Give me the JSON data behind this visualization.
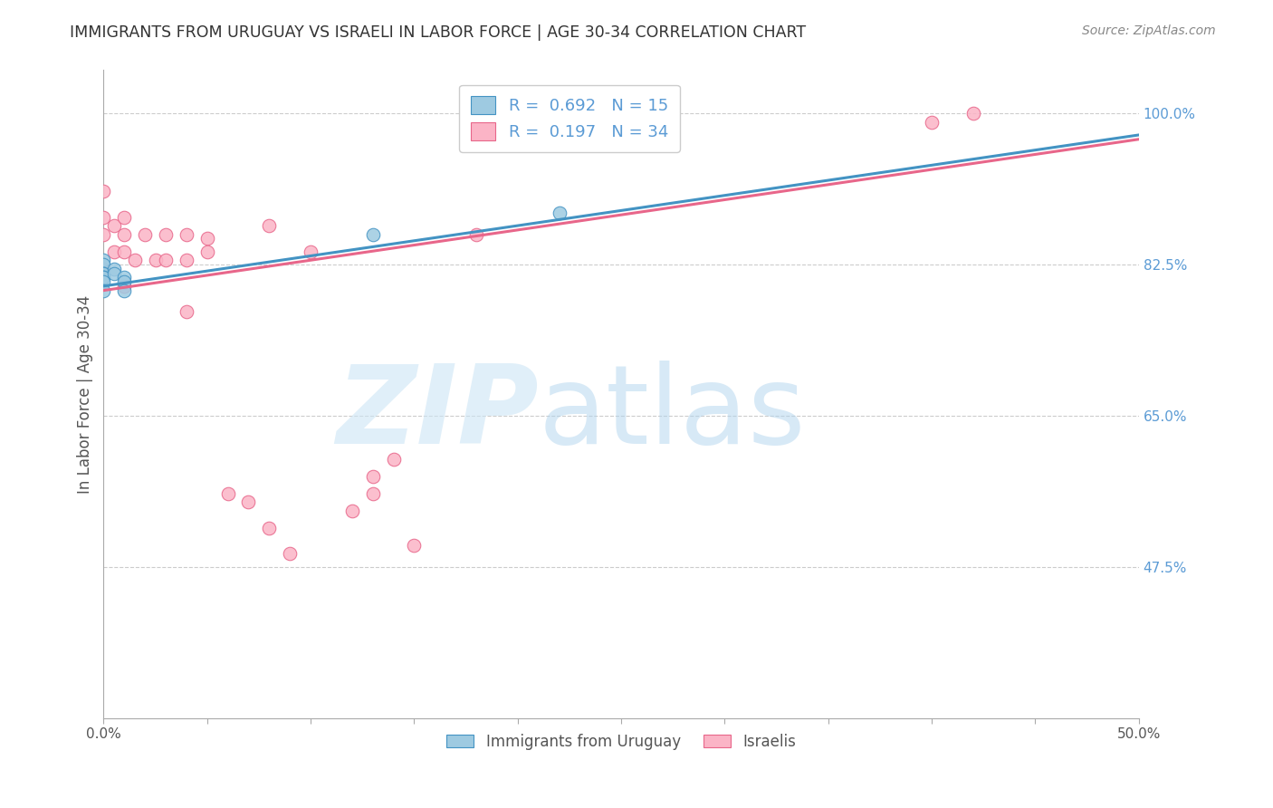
{
  "title": "IMMIGRANTS FROM URUGUAY VS ISRAELI IN LABOR FORCE | AGE 30-34 CORRELATION CHART",
  "source": "Source: ZipAtlas.com",
  "ylabel": "In Labor Force | Age 30-34",
  "xlim": [
    0.0,
    0.5
  ],
  "ylim": [
    0.3,
    1.05
  ],
  "right_ytick_labels": [
    "100.0%",
    "82.5%",
    "65.0%",
    "47.5%"
  ],
  "right_ytick_values": [
    1.0,
    0.825,
    0.65,
    0.475
  ],
  "xtick_labels": [
    "0.0%",
    "",
    "",
    "",
    "",
    "",
    "",
    "",
    "",
    "",
    "50.0%"
  ],
  "xtick_values": [
    0.0,
    0.05,
    0.1,
    0.15,
    0.2,
    0.25,
    0.3,
    0.35,
    0.4,
    0.45,
    0.5
  ],
  "blue_legend_R": "0.692",
  "blue_legend_N": "15",
  "pink_legend_R": "0.197",
  "pink_legend_N": "34",
  "blue_color": "#9ecae1",
  "pink_color": "#fbb4c6",
  "blue_line_color": "#4393c3",
  "pink_line_color": "#e8668a",
  "blue_scatter_x": [
    0.0,
    0.0,
    0.0,
    0.0,
    0.0,
    0.0,
    0.0,
    0.0,
    0.005,
    0.005,
    0.01,
    0.01,
    0.01,
    0.13,
    0.22
  ],
  "blue_scatter_y": [
    0.83,
    0.825,
    0.815,
    0.815,
    0.81,
    0.81,
    0.805,
    0.795,
    0.82,
    0.815,
    0.81,
    0.805,
    0.795,
    0.86,
    0.885
  ],
  "pink_scatter_x": [
    0.0,
    0.0,
    0.0,
    0.0,
    0.005,
    0.005,
    0.01,
    0.01,
    0.01,
    0.01,
    0.015,
    0.02,
    0.025,
    0.03,
    0.03,
    0.04,
    0.04,
    0.04,
    0.05,
    0.05,
    0.08,
    0.1,
    0.12,
    0.13,
    0.13,
    0.14,
    0.15,
    0.18,
    0.4,
    0.42,
    0.06,
    0.07,
    0.08,
    0.09
  ],
  "pink_scatter_y": [
    0.91,
    0.88,
    0.86,
    0.82,
    0.87,
    0.84,
    0.88,
    0.86,
    0.84,
    0.8,
    0.83,
    0.86,
    0.83,
    0.86,
    0.83,
    0.86,
    0.83,
    0.77,
    0.855,
    0.84,
    0.87,
    0.84,
    0.54,
    0.56,
    0.58,
    0.6,
    0.5,
    0.86,
    0.99,
    1.0,
    0.56,
    0.55,
    0.52,
    0.49
  ],
  "blue_line_x0": 0.0,
  "blue_line_x1": 0.5,
  "blue_line_y0": 0.8,
  "blue_line_y1": 0.975,
  "pink_line_x0": 0.0,
  "pink_line_x1": 0.5,
  "pink_line_y0": 0.795,
  "pink_line_y1": 0.97,
  "grid_color": "#cccccc",
  "background_color": "#ffffff",
  "title_color": "#333333",
  "axis_label_color": "#555555",
  "right_axis_color": "#5b9bd5"
}
